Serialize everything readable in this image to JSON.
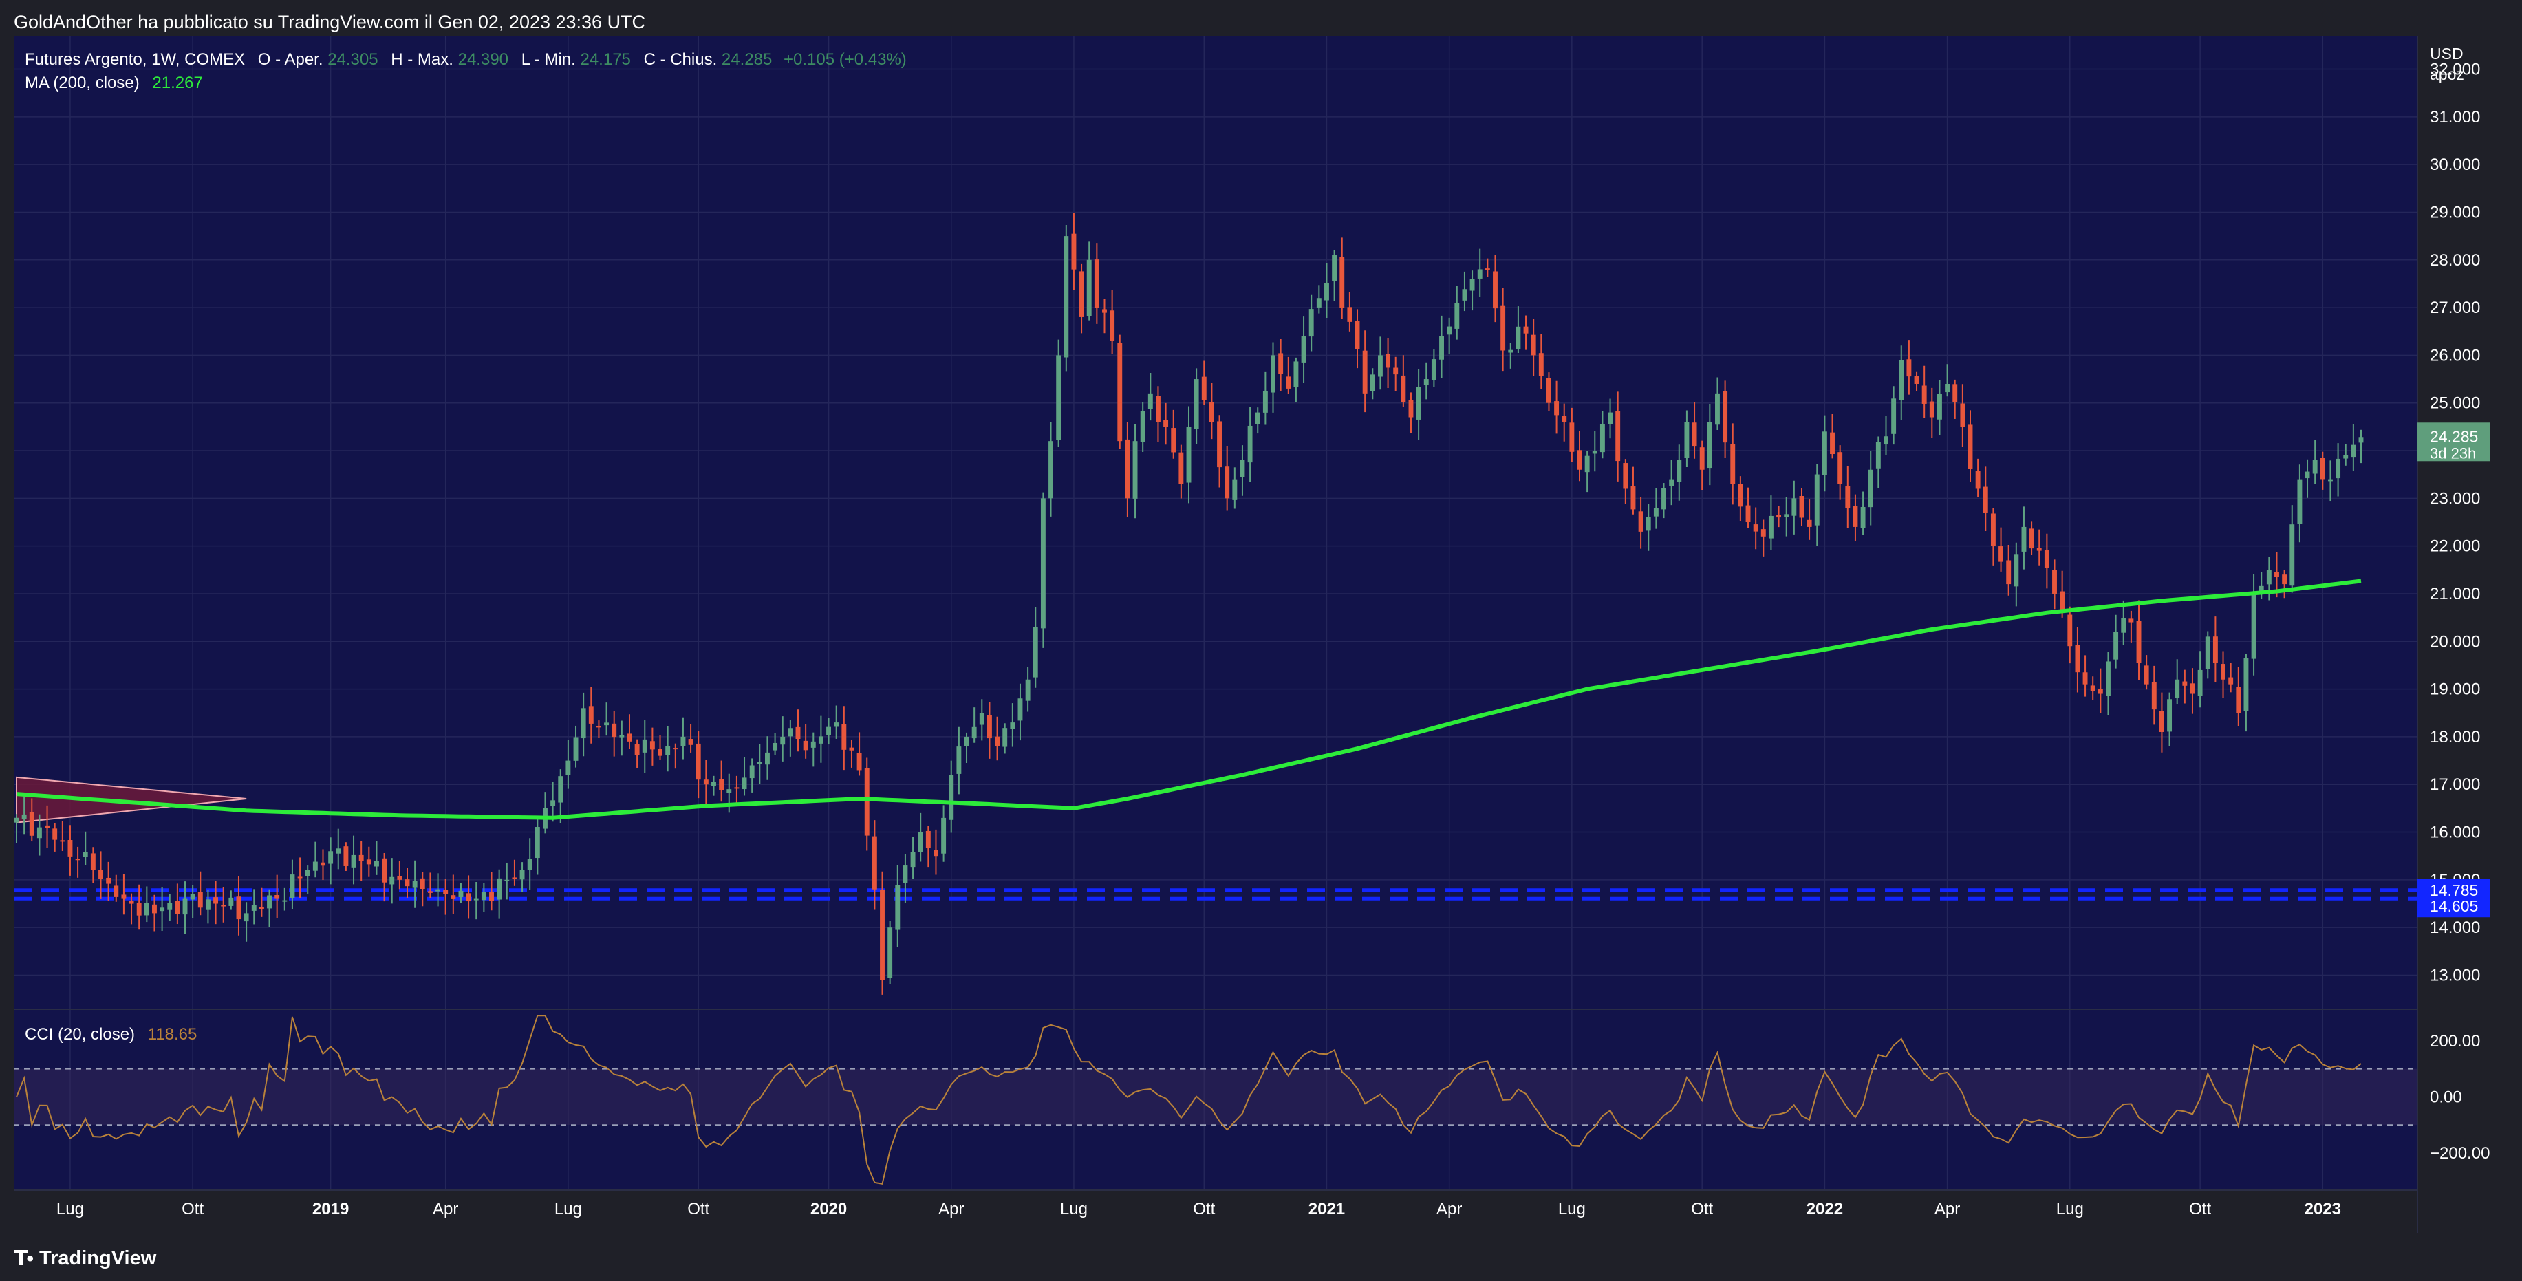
{
  "header": {
    "published": "GoldAndOther ha pubblicato su TradingView.com il Gen 02, 2023 23:36 UTC"
  },
  "legend": {
    "symbol": "Futures Argento, 1W, COMEX",
    "open_label": "O - Aper.",
    "open_value": "24.305",
    "high_label": "H - Max.",
    "high_value": "24.390",
    "low_label": "L - Min.",
    "low_value": "24.175",
    "close_label": "C - Chius.",
    "close_value": "24.285",
    "change": "+0.105 (+0.43%)",
    "ma_label": "MA (200, close)",
    "ma_value": "21.267",
    "cci_label": "CCI (20, close)",
    "cci_value": "118.65"
  },
  "price_axis": {
    "currency": "USD",
    "author": "apoz",
    "ticks": [
      "32.000",
      "31.000",
      "30.000",
      "29.000",
      "28.000",
      "27.000",
      "26.000",
      "25.000",
      "24.000",
      "23.000",
      "22.000",
      "21.000",
      "20.000",
      "19.000",
      "18.000",
      "17.000",
      "16.000",
      "15.000",
      "14.000",
      "13.000"
    ],
    "last_price": "24.285",
    "countdown": "3d 23h",
    "level_upper": "14.785",
    "level_lower": "14.605"
  },
  "cci_axis": {
    "ticks": [
      "200.00",
      "0.00",
      "−200.00"
    ]
  },
  "time_axis": {
    "labels": [
      {
        "text": "Lug",
        "bold": false
      },
      {
        "text": "Ott",
        "bold": false
      },
      {
        "text": "2019",
        "bold": true
      },
      {
        "text": "Apr",
        "bold": false
      },
      {
        "text": "Lug",
        "bold": false
      },
      {
        "text": "Ott",
        "bold": false
      },
      {
        "text": "2020",
        "bold": true
      },
      {
        "text": "Apr",
        "bold": false
      },
      {
        "text": "Lug",
        "bold": false
      },
      {
        "text": "Ott",
        "bold": false
      },
      {
        "text": "2021",
        "bold": true
      },
      {
        "text": "Apr",
        "bold": false
      },
      {
        "text": "Lug",
        "bold": false
      },
      {
        "text": "Ott",
        "bold": false
      },
      {
        "text": "2022",
        "bold": true
      },
      {
        "text": "Apr",
        "bold": false
      },
      {
        "text": "Lug",
        "bold": false
      },
      {
        "text": "Ott",
        "bold": false
      },
      {
        "text": "2023",
        "bold": true
      }
    ]
  },
  "footer": {
    "brand": "TradingView"
  },
  "colors": {
    "up": "#5fa383",
    "down": "#e8573c",
    "ma": "#2dec3a",
    "cci": "#b9823a",
    "level": "#1226ff",
    "pane_bg": "#12134a",
    "last_bg": "#5f9e7c"
  },
  "chart_data": {
    "type": "candlestick",
    "timeframe": "1W",
    "ylim": [
      12.3,
      32.7
    ],
    "cci_ylim": [
      -330,
      310
    ],
    "overbought": 100,
    "oversold": -100,
    "anchors": [
      {
        "t": 0,
        "c": 16.3
      },
      {
        "t": 3,
        "c": 16.1
      },
      {
        "t": 6,
        "c": 15.8
      },
      {
        "t": 10,
        "c": 15.2
      },
      {
        "t": 14,
        "c": 14.6
      },
      {
        "t": 18,
        "c": 14.3
      },
      {
        "t": 22,
        "c": 14.6
      },
      {
        "t": 26,
        "c": 14.5
      },
      {
        "t": 30,
        "c": 14.3
      },
      {
        "t": 34,
        "c": 14.6
      },
      {
        "t": 38,
        "c": 15.2
      },
      {
        "t": 41,
        "c": 15.6
      },
      {
        "t": 45,
        "c": 15.4
      },
      {
        "t": 50,
        "c": 15.0
      },
      {
        "t": 55,
        "c": 14.8
      },
      {
        "t": 60,
        "c": 14.6
      },
      {
        "t": 64,
        "c": 15.0
      },
      {
        "t": 66,
        "c": 15.2
      },
      {
        "t": 69,
        "c": 16.5
      },
      {
        "t": 72,
        "c": 17.5
      },
      {
        "t": 74,
        "c": 18.6
      },
      {
        "t": 76,
        "c": 18.2
      },
      {
        "t": 80,
        "c": 17.9
      },
      {
        "t": 84,
        "c": 17.6
      },
      {
        "t": 87,
        "c": 18.0
      },
      {
        "t": 90,
        "c": 17.0
      },
      {
        "t": 93,
        "c": 16.9
      },
      {
        "t": 96,
        "c": 17.4
      },
      {
        "t": 100,
        "c": 18.0
      },
      {
        "t": 104,
        "c": 17.9
      },
      {
        "t": 107,
        "c": 18.3
      },
      {
        "t": 110,
        "c": 17.3
      },
      {
        "t": 112,
        "c": 14.8
      },
      {
        "t": 113,
        "c": 12.9
      },
      {
        "t": 114,
        "c": 14.0
      },
      {
        "t": 116,
        "c": 15.3
      },
      {
        "t": 118,
        "c": 16.0
      },
      {
        "t": 120,
        "c": 15.5
      },
      {
        "t": 122,
        "c": 17.2
      },
      {
        "t": 124,
        "c": 18.0
      },
      {
        "t": 126,
        "c": 18.5
      },
      {
        "t": 128,
        "c": 17.8
      },
      {
        "t": 130,
        "c": 18.3
      },
      {
        "t": 132,
        "c": 19.2
      },
      {
        "t": 133,
        "c": 20.3
      },
      {
        "t": 134,
        "c": 23.0
      },
      {
        "t": 135,
        "c": 24.2
      },
      {
        "t": 136,
        "c": 26.0
      },
      {
        "t": 137,
        "c": 28.5
      },
      {
        "t": 138,
        "c": 27.8
      },
      {
        "t": 139,
        "c": 26.8
      },
      {
        "t": 140,
        "c": 28.0
      },
      {
        "t": 141,
        "c": 27.0
      },
      {
        "t": 143,
        "c": 26.3
      },
      {
        "t": 144,
        "c": 24.2
      },
      {
        "t": 145,
        "c": 23.0
      },
      {
        "t": 146,
        "c": 24.2
      },
      {
        "t": 148,
        "c": 25.2
      },
      {
        "t": 150,
        "c": 24.5
      },
      {
        "t": 152,
        "c": 23.3
      },
      {
        "t": 154,
        "c": 25.5
      },
      {
        "t": 156,
        "c": 24.6
      },
      {
        "t": 158,
        "c": 23.0
      },
      {
        "t": 160,
        "c": 23.8
      },
      {
        "t": 162,
        "c": 24.8
      },
      {
        "t": 164,
        "c": 26.0
      },
      {
        "t": 166,
        "c": 25.3
      },
      {
        "t": 168,
        "c": 26.4
      },
      {
        "t": 170,
        "c": 27.2
      },
      {
        "t": 172,
        "c": 28.1
      },
      {
        "t": 173,
        "c": 27.0
      },
      {
        "t": 174,
        "c": 26.7
      },
      {
        "t": 176,
        "c": 25.2
      },
      {
        "t": 178,
        "c": 26.0
      },
      {
        "t": 180,
        "c": 25.6
      },
      {
        "t": 182,
        "c": 24.7
      },
      {
        "t": 184,
        "c": 25.5
      },
      {
        "t": 186,
        "c": 26.4
      },
      {
        "t": 188,
        "c": 27.1
      },
      {
        "t": 190,
        "c": 27.6
      },
      {
        "t": 192,
        "c": 27.8
      },
      {
        "t": 194,
        "c": 26.1
      },
      {
        "t": 196,
        "c": 26.6
      },
      {
        "t": 198,
        "c": 26.0
      },
      {
        "t": 200,
        "c": 25.0
      },
      {
        "t": 202,
        "c": 24.6
      },
      {
        "t": 204,
        "c": 23.6
      },
      {
        "t": 206,
        "c": 24.0
      },
      {
        "t": 208,
        "c": 24.8
      },
      {
        "t": 210,
        "c": 23.2
      },
      {
        "t": 212,
        "c": 22.3
      },
      {
        "t": 214,
        "c": 22.8
      },
      {
        "t": 216,
        "c": 23.4
      },
      {
        "t": 218,
        "c": 24.6
      },
      {
        "t": 220,
        "c": 23.6
      },
      {
        "t": 222,
        "c": 25.2
      },
      {
        "t": 224,
        "c": 23.3
      },
      {
        "t": 226,
        "c": 22.5
      },
      {
        "t": 228,
        "c": 22.2
      },
      {
        "t": 230,
        "c": 22.6
      },
      {
        "t": 232,
        "c": 23.0
      },
      {
        "t": 234,
        "c": 22.4
      },
      {
        "t": 236,
        "c": 24.4
      },
      {
        "t": 238,
        "c": 23.3
      },
      {
        "t": 240,
        "c": 22.4
      },
      {
        "t": 242,
        "c": 23.6
      },
      {
        "t": 244,
        "c": 24.3
      },
      {
        "t": 246,
        "c": 25.9
      },
      {
        "t": 248,
        "c": 25.4
      },
      {
        "t": 250,
        "c": 24.7
      },
      {
        "t": 252,
        "c": 25.4
      },
      {
        "t": 254,
        "c": 24.5
      },
      {
        "t": 256,
        "c": 23.2
      },
      {
        "t": 258,
        "c": 22.0
      },
      {
        "t": 260,
        "c": 21.2
      },
      {
        "t": 262,
        "c": 22.4
      },
      {
        "t": 264,
        "c": 21.9
      },
      {
        "t": 266,
        "c": 21.0
      },
      {
        "t": 268,
        "c": 19.9
      },
      {
        "t": 270,
        "c": 19.1
      },
      {
        "t": 272,
        "c": 18.9
      },
      {
        "t": 274,
        "c": 20.2
      },
      {
        "t": 276,
        "c": 20.4
      },
      {
        "t": 278,
        "c": 19.1
      },
      {
        "t": 280,
        "c": 18.1
      },
      {
        "t": 282,
        "c": 19.2
      },
      {
        "t": 284,
        "c": 18.9
      },
      {
        "t": 286,
        "c": 20.1
      },
      {
        "t": 288,
        "c": 19.2
      },
      {
        "t": 290,
        "c": 18.5
      },
      {
        "t": 292,
        "c": 21.0
      },
      {
        "t": 294,
        "c": 21.5
      },
      {
        "t": 296,
        "c": 21.2
      },
      {
        "t": 298,
        "c": 23.4
      },
      {
        "t": 300,
        "c": 23.8
      },
      {
        "t": 302,
        "c": 23.4
      },
      {
        "t": 304,
        "c": 23.9
      },
      {
        "t": 306,
        "c": 24.285
      }
    ],
    "ma200": [
      {
        "t": 0,
        "v": 16.8
      },
      {
        "t": 30,
        "v": 16.45
      },
      {
        "t": 50,
        "v": 16.35
      },
      {
        "t": 70,
        "v": 16.3
      },
      {
        "t": 90,
        "v": 16.55
      },
      {
        "t": 110,
        "v": 16.7
      },
      {
        "t": 125,
        "v": 16.6
      },
      {
        "t": 138,
        "v": 16.5
      },
      {
        "t": 145,
        "v": 16.7
      },
      {
        "t": 160,
        "v": 17.2
      },
      {
        "t": 175,
        "v": 17.75
      },
      {
        "t": 190,
        "v": 18.4
      },
      {
        "t": 205,
        "v": 19.0
      },
      {
        "t": 220,
        "v": 19.4
      },
      {
        "t": 235,
        "v": 19.8
      },
      {
        "t": 250,
        "v": 20.25
      },
      {
        "t": 265,
        "v": 20.6
      },
      {
        "t": 280,
        "v": 20.85
      },
      {
        "t": 295,
        "v": 21.05
      },
      {
        "t": 306,
        "v": 21.267
      }
    ],
    "triangle": [
      {
        "t": 0,
        "p": 17.15
      },
      {
        "t": 30,
        "p": 16.7
      },
      {
        "t": 0,
        "p": 16.2
      }
    ],
    "levels": [
      14.785,
      14.605
    ],
    "time_label_t": [
      7,
      23,
      41,
      56,
      72,
      89,
      106,
      122,
      138,
      155,
      171,
      187,
      203,
      220,
      236,
      252,
      268,
      285,
      301
    ]
  }
}
